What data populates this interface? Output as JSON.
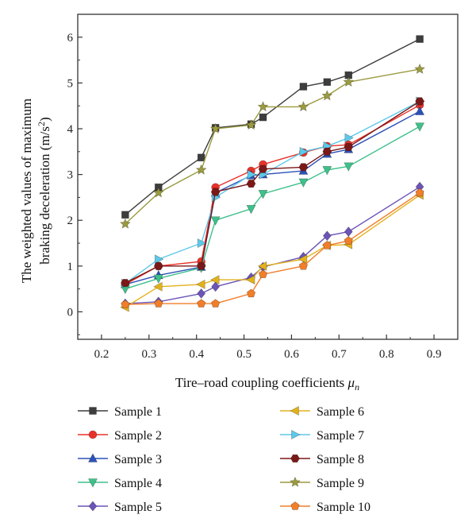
{
  "chart_data": {
    "type": "line",
    "xlabel": "Tire–road coupling coefficients ",
    "xlabel_symbol": "μ",
    "xlabel_subscript": "n",
    "ylabel_line1": "The weighted values of maximum",
    "ylabel_line2": "braking deceleration (m/s",
    "ylabel_sup": "2",
    "ylabel_close": ")",
    "xlim": [
      0.15,
      0.95
    ],
    "ylim": [
      -0.6,
      6.5
    ],
    "xticks": [
      "0.2",
      "0.3",
      "0.4",
      "0.5",
      "0.6",
      "0.7",
      "0.8",
      "0.9"
    ],
    "yticks": [
      "0",
      "1",
      "2",
      "3",
      "4",
      "5",
      "6"
    ],
    "legend_position": "bottom",
    "series": [
      {
        "name": "Sample 1",
        "color": "#3d3d3d",
        "marker": "square",
        "points": [
          [
            0.25,
            2.12
          ],
          [
            0.32,
            2.72
          ],
          [
            0.41,
            3.37
          ],
          [
            0.44,
            4.02
          ],
          [
            0.515,
            4.1
          ],
          [
            0.54,
            4.25
          ],
          [
            0.625,
            4.92
          ],
          [
            0.675,
            5.02
          ],
          [
            0.72,
            5.17
          ],
          [
            0.87,
            5.96
          ]
        ]
      },
      {
        "name": "Sample 2",
        "color": "#e8312a",
        "marker": "circle",
        "points": [
          [
            0.25,
            0.6
          ],
          [
            0.32,
            1.0
          ],
          [
            0.41,
            1.1
          ],
          [
            0.44,
            2.72
          ],
          [
            0.515,
            3.08
          ],
          [
            0.54,
            3.22
          ],
          [
            0.625,
            3.48
          ],
          [
            0.675,
            3.62
          ],
          [
            0.72,
            3.65
          ],
          [
            0.87,
            4.52
          ]
        ]
      },
      {
        "name": "Sample 3",
        "color": "#2c52b8",
        "marker": "triangle-up",
        "points": [
          [
            0.25,
            0.6
          ],
          [
            0.32,
            0.8
          ],
          [
            0.41,
            0.98
          ],
          [
            0.44,
            2.6
          ],
          [
            0.515,
            2.98
          ],
          [
            0.54,
            3.0
          ],
          [
            0.625,
            3.08
          ],
          [
            0.675,
            3.45
          ],
          [
            0.72,
            3.55
          ],
          [
            0.87,
            4.38
          ]
        ]
      },
      {
        "name": "Sample 4",
        "color": "#3ec08a",
        "marker": "triangle-down",
        "points": [
          [
            0.25,
            0.5
          ],
          [
            0.32,
            0.73
          ],
          [
            0.41,
            0.96
          ],
          [
            0.44,
            2.0
          ],
          [
            0.515,
            2.25
          ],
          [
            0.54,
            2.58
          ],
          [
            0.625,
            2.83
          ],
          [
            0.675,
            3.1
          ],
          [
            0.72,
            3.18
          ],
          [
            0.87,
            4.05
          ]
        ]
      },
      {
        "name": "Sample 5",
        "color": "#6c54b8",
        "marker": "diamond",
        "points": [
          [
            0.25,
            0.18
          ],
          [
            0.32,
            0.22
          ],
          [
            0.41,
            0.4
          ],
          [
            0.44,
            0.55
          ],
          [
            0.515,
            0.75
          ],
          [
            0.54,
            0.98
          ],
          [
            0.625,
            1.2
          ],
          [
            0.675,
            1.66
          ],
          [
            0.72,
            1.75
          ],
          [
            0.87,
            2.73
          ]
        ]
      },
      {
        "name": "Sample 6",
        "color": "#e2b21c",
        "marker": "triangle-left",
        "points": [
          [
            0.25,
            0.1
          ],
          [
            0.32,
            0.55
          ],
          [
            0.41,
            0.6
          ],
          [
            0.44,
            0.7
          ],
          [
            0.515,
            0.7
          ],
          [
            0.54,
            1.0
          ],
          [
            0.625,
            1.15
          ],
          [
            0.675,
            1.45
          ],
          [
            0.72,
            1.47
          ],
          [
            0.87,
            2.55
          ]
        ]
      },
      {
        "name": "Sample 7",
        "color": "#5fc8e8",
        "marker": "triangle-right",
        "points": [
          [
            0.25,
            0.62
          ],
          [
            0.32,
            1.15
          ],
          [
            0.41,
            1.5
          ],
          [
            0.44,
            2.5
          ],
          [
            0.515,
            3.0
          ],
          [
            0.54,
            3.0
          ],
          [
            0.625,
            3.5
          ],
          [
            0.675,
            3.62
          ],
          [
            0.72,
            3.8
          ],
          [
            0.87,
            4.6
          ]
        ]
      },
      {
        "name": "Sample 8",
        "color": "#7a1818",
        "marker": "hexagon",
        "points": [
          [
            0.25,
            0.63
          ],
          [
            0.32,
            1.0
          ],
          [
            0.41,
            1.0
          ],
          [
            0.44,
            2.62
          ],
          [
            0.515,
            2.8
          ],
          [
            0.54,
            3.12
          ],
          [
            0.625,
            3.16
          ],
          [
            0.675,
            3.5
          ],
          [
            0.72,
            3.6
          ],
          [
            0.87,
            4.6
          ]
        ]
      },
      {
        "name": "Sample 9",
        "color": "#9a9a40",
        "marker": "star",
        "points": [
          [
            0.25,
            1.92
          ],
          [
            0.32,
            2.6
          ],
          [
            0.41,
            3.1
          ],
          [
            0.44,
            4.0
          ],
          [
            0.515,
            4.08
          ],
          [
            0.54,
            4.48
          ],
          [
            0.625,
            4.48
          ],
          [
            0.675,
            4.72
          ],
          [
            0.72,
            5.02
          ],
          [
            0.87,
            5.3
          ]
        ]
      },
      {
        "name": "Sample 10",
        "color": "#f07e2a",
        "marker": "pentagon",
        "points": [
          [
            0.25,
            0.16
          ],
          [
            0.32,
            0.18
          ],
          [
            0.41,
            0.18
          ],
          [
            0.44,
            0.18
          ],
          [
            0.515,
            0.4
          ],
          [
            0.54,
            0.82
          ],
          [
            0.625,
            1.0
          ],
          [
            0.675,
            1.45
          ],
          [
            0.72,
            1.55
          ],
          [
            0.87,
            2.6
          ]
        ]
      }
    ]
  }
}
